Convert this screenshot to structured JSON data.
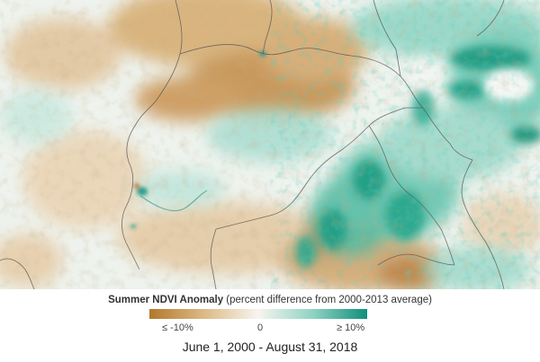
{
  "legend": {
    "title_bold": "Summer NDVI Anomaly",
    "title_rest": " (percent difference from 2000-2013 average)",
    "tick_low": "≤ -10%",
    "tick_mid": "0",
    "tick_high": "≥ 10%",
    "colors": {
      "negative": "#b3782a",
      "neutral": "#f7f5ef",
      "positive": "#0f8f7a"
    }
  },
  "caption": {
    "date_range": "June 1, 2000 - August 31, 2018"
  },
  "map": {
    "colors": {
      "land_base": "#eef3ee",
      "browning": "#c9954f",
      "greening": "#2fb59c",
      "strong_greening": "#0d8a70",
      "water": "#3a9e8e",
      "border": "#5a5a5a"
    }
  }
}
